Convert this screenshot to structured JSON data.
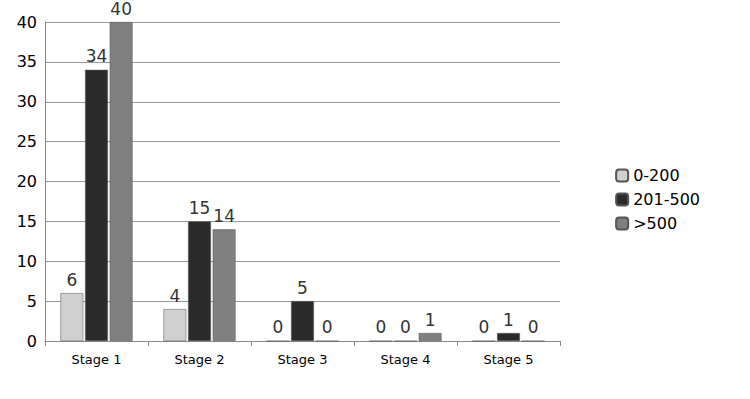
{
  "chart_data": {
    "type": "bar",
    "categories": [
      "Stage 1",
      "Stage 2",
      "Stage 3",
      "Stage 4",
      "Stage 5"
    ],
    "series": [
      {
        "name": "0-200",
        "color": "#d0d0d0",
        "values": [
          6,
          4,
          0,
          0,
          0
        ]
      },
      {
        "name": "201-500",
        "color": "#2b2b2b",
        "values": [
          34,
          15,
          5,
          0,
          1
        ]
      },
      {
        "name": ">500",
        "color": "#808080",
        "values": [
          40,
          14,
          0,
          1,
          0
        ]
      }
    ],
    "ylim": [
      0,
      40
    ],
    "yticks": [
      0,
      5,
      10,
      15,
      20,
      25,
      30,
      35,
      40
    ],
    "grid": true,
    "legend": "right",
    "data_labels": true
  }
}
